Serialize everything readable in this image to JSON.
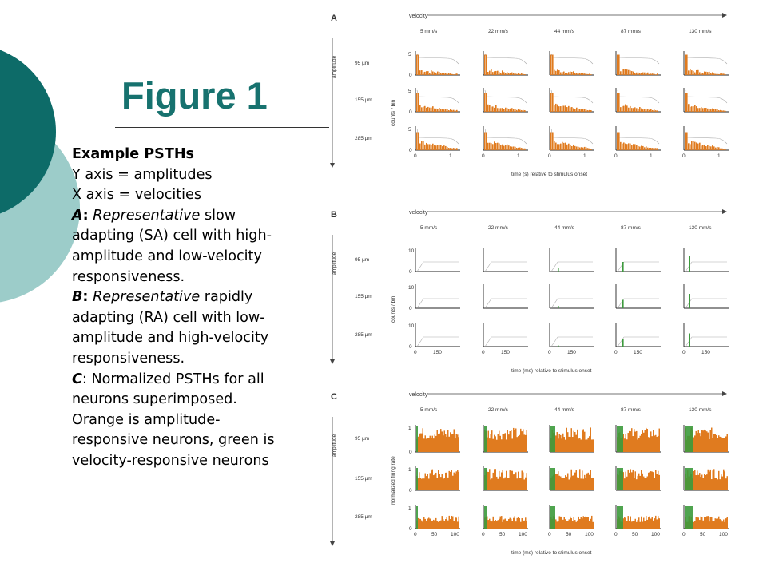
{
  "slide": {
    "title": "Figure 1",
    "caption": {
      "heading": "Example PSTHs",
      "lines": [
        "Y axis = amplitudes",
        "X axis = velocities"
      ],
      "a": {
        "label": "A",
        "colon": ":",
        "italic": "Representative",
        "rest1": " slow",
        "l2": "adapting (SA) cell with high-",
        "l3": "amplitude and low-velocity",
        "l4": "responsiveness."
      },
      "b": {
        "label": "B",
        "colon": ":",
        "italic": "Representative",
        "rest1": " rapidly",
        "l2": "adapting (RA) cell with low-",
        "l3": "amplitude and high-velocity",
        "l4": "responsiveness."
      },
      "c": {
        "label": "C",
        "rest1": ": Normalized PSTHs for all",
        "l2": "neurons superimposed.",
        "l3": "Orange is amplitude-",
        "l4": "responsive neurons, green is",
        "l5": "velocity-responsive neurons"
      }
    }
  },
  "colors": {
    "title": "#17726f",
    "dark_teal": "#0d6b68",
    "light_teal": "#9cccc9",
    "orange": "#e07b1f",
    "green": "#3c9a3c"
  },
  "figure": {
    "velocity_label": "velocity",
    "amplitude_label": "amplitude",
    "velocities": [
      "5 mm/s",
      "22 mm/s",
      "44 mm/s",
      "87 mm/s",
      "130 mm/s"
    ],
    "amplitudes": [
      "95 µm",
      "155 µm",
      "285 µm"
    ],
    "panels": [
      {
        "letter": "A",
        "ylabel": "counts / bin",
        "yticks_top": "5",
        "yticks_zero": "0",
        "xticks": [
          "0",
          "1"
        ],
        "xlabel": "time (s) relative to stimulus onset",
        "kind": "slow"
      },
      {
        "letter": "B",
        "ylabel": "counts / bin",
        "yticks_top": "10",
        "yticks_zero": "0",
        "xticks": [
          "0",
          "150"
        ],
        "xlabel": "time (ms) relative to stimulus onset",
        "kind": "rapid"
      },
      {
        "letter": "C",
        "ylabel": "normalized firing rate",
        "yticks_top": "1",
        "yticks_zero": "0",
        "xticks": [
          "0",
          "50",
          "100"
        ],
        "xlabel": "time (ms) relative to stimulus onset",
        "kind": "norm"
      }
    ]
  }
}
